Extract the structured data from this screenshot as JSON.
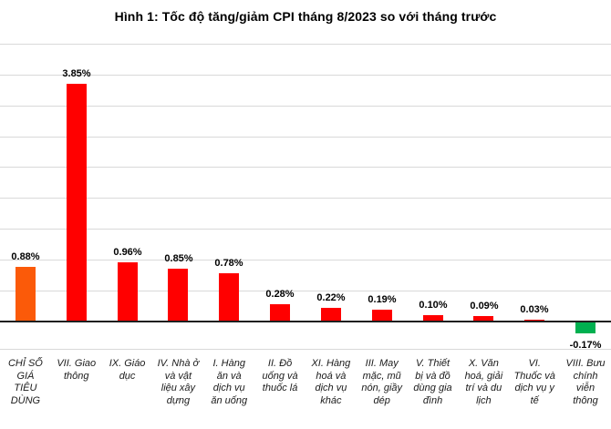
{
  "chart_data": {
    "type": "bar",
    "title": "Hình 1: Tốc độ tăng/giảm CPI tháng 8/2023 so với tháng trước",
    "unit": "%",
    "categories": [
      "CHỈ SỐ GIÁ TIÊU DÙNG",
      "VII. Giao thông",
      "IX. Giáo dục",
      "IV. Nhà ở và vật liệu xây dựng",
      "I. Hàng ăn và dịch vụ ăn uống",
      "II. Đồ uống và thuốc lá",
      "XI. Hàng hoá và dịch vụ khác",
      "III. May mặc, mũ nón, giầy dép",
      "V. Thiết bị và đồ dùng gia đình",
      "X. Văn hoá, giải trí và du lịch",
      "VI. Thuốc và dịch vụ y tế",
      "VIII. Bưu chính viễn thông"
    ],
    "categories_display": [
      "CHỈ SỐ\nGIÁ\nTIÊU\nDÙNG",
      "VII. Giao\nthông",
      "IX. Giáo\ndục",
      "IV. Nhà ở\nvà vật\nliệu xây\ndựng",
      "I. Hàng\năn và\ndịch vụ\năn uống",
      "II. Đồ\nuống và\nthuốc lá",
      "XI. Hàng\nhoá và\ndịch vụ\nkhác",
      "III. May\nmặc, mũ\nnón, giầy\ndép",
      "V. Thiết\nbị và đồ\ndùng gia\nđình",
      "X. Văn\nhoá, giải\ntrí và du\nlịch",
      "VI.\nThuốc và\ndịch vụ y\ntế",
      "VIII. Bưu\nchính\nviễn\nthông"
    ],
    "values": [
      0.88,
      3.85,
      0.96,
      0.85,
      0.78,
      0.28,
      0.22,
      0.19,
      0.1,
      0.09,
      0.03,
      -0.17
    ],
    "value_labels": [
      "0.88%",
      "3.85%",
      "0.96%",
      "0.85%",
      "0.78%",
      "0.28%",
      "0.22%",
      "0.19%",
      "0.10%",
      "0.09%",
      "0.03%",
      "-0.17%"
    ],
    "bar_colors": [
      "#fb5a09",
      "#ff0000",
      "#ff0000",
      "#ff0000",
      "#ff0000",
      "#ff0000",
      "#ff0000",
      "#ff0000",
      "#ff0000",
      "#ff0000",
      "#ff0000",
      "#00b050"
    ],
    "gridline_color": "#d9d9d9",
    "axis_line_color": "#1f1f1f",
    "ylim": [
      -0.45,
      4.5
    ],
    "gridline_step": 0.5,
    "grid": true,
    "legend": false,
    "xlabel": "",
    "ylabel": ""
  }
}
